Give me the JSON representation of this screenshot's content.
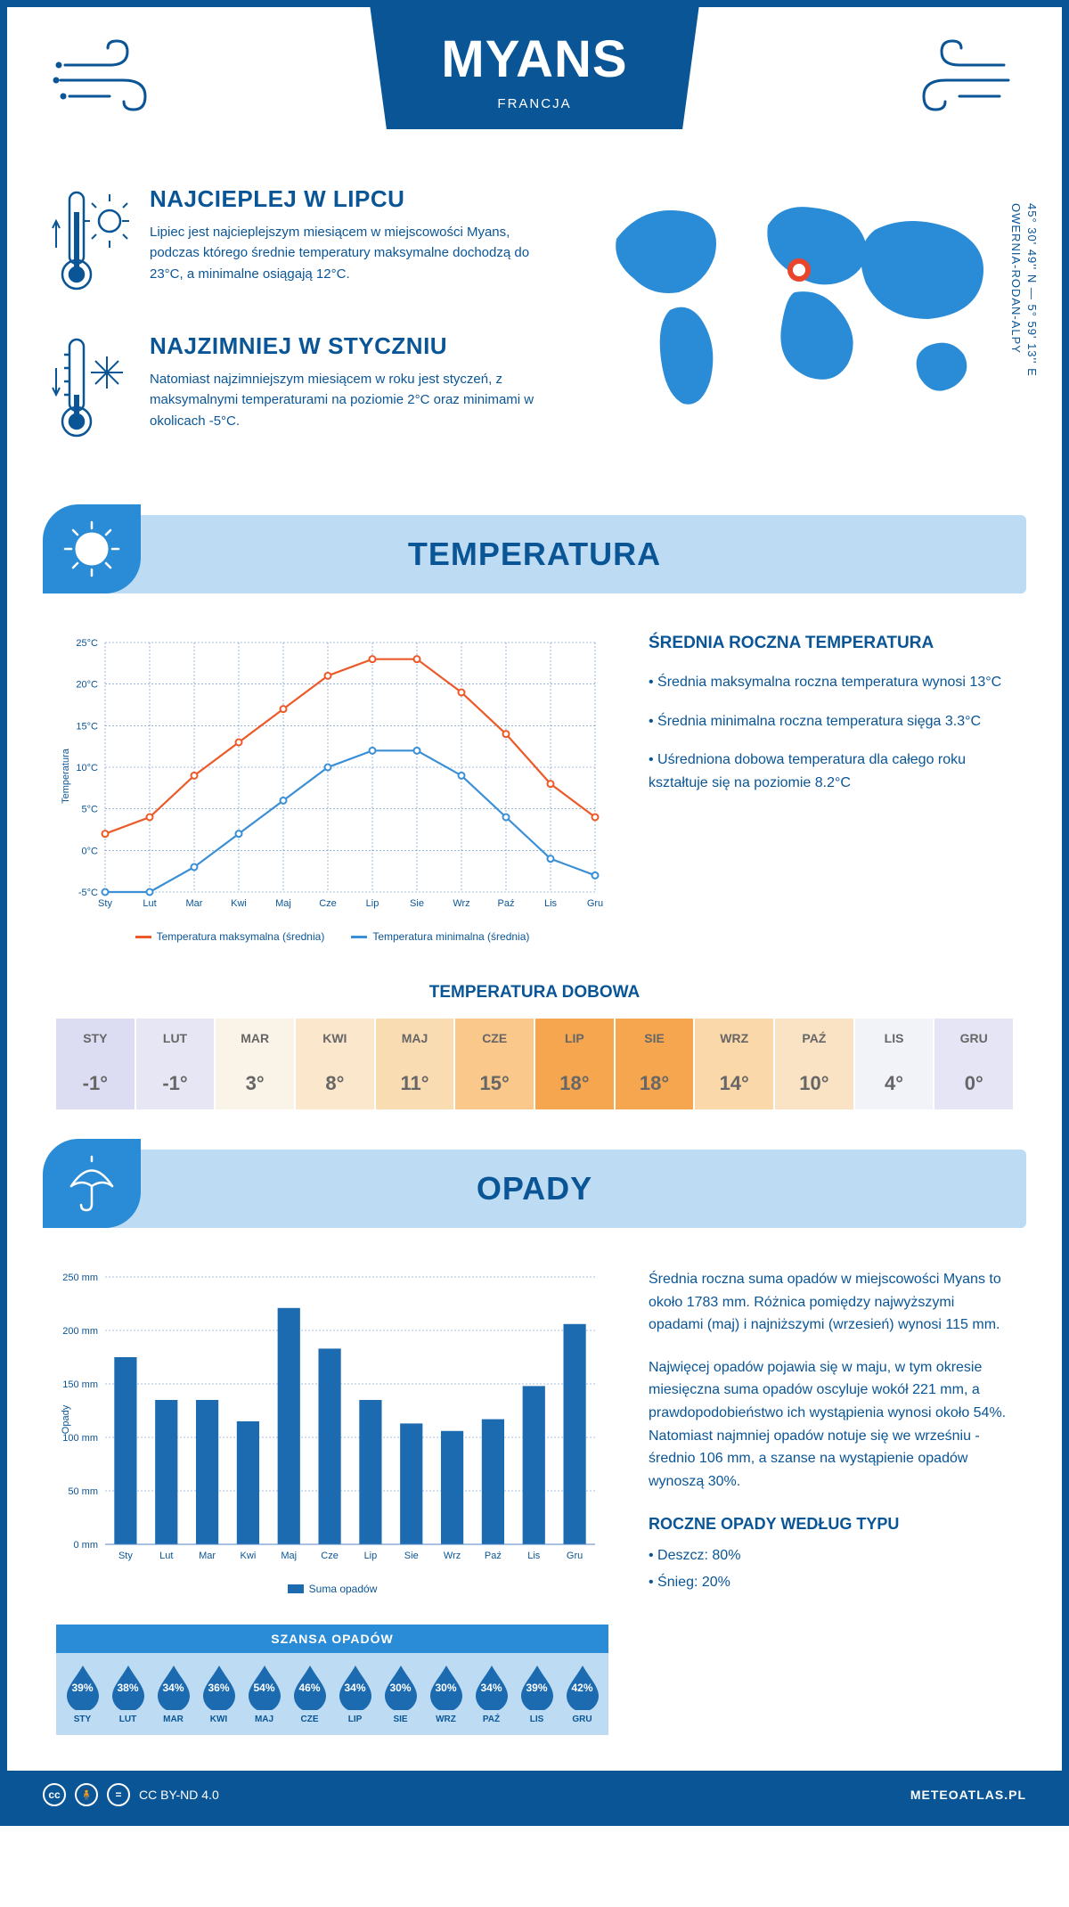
{
  "header": {
    "city": "MYANS",
    "country": "FRANCJA"
  },
  "coords": {
    "lat": "45° 30' 49'' N — 5° 59' 13'' E",
    "region": "OWERNIA-RODAN-ALPY"
  },
  "intro": {
    "warm": {
      "title": "NAJCIEPLEJ W LIPCU",
      "text": "Lipiec jest najcieplejszym miesiącem w miejscowości Myans, podczas którego średnie temperatury maksymalne dochodzą do 23°C, a minimalne osiągają 12°C."
    },
    "cold": {
      "title": "NAJZIMNIEJ W STYCZNIU",
      "text": "Natomiast najzimniejszym miesiącem w roku jest styczeń, z maksymalnymi temperaturami na poziomie 2°C oraz minimami w okolicach -5°C."
    }
  },
  "sections": {
    "temp": "TEMPERATURA",
    "precip": "OPADY"
  },
  "months": [
    "Sty",
    "Lut",
    "Mar",
    "Kwi",
    "Maj",
    "Cze",
    "Lip",
    "Sie",
    "Wrz",
    "Paź",
    "Lis",
    "Gru"
  ],
  "months_upper": [
    "STY",
    "LUT",
    "MAR",
    "KWI",
    "MAJ",
    "CZE",
    "LIP",
    "SIE",
    "WRZ",
    "PAŹ",
    "LIS",
    "GRU"
  ],
  "temp_chart": {
    "type": "line",
    "ylabel": "Temperatura",
    "ylim": [
      -5,
      25
    ],
    "ytick_step": 5,
    "max_series": {
      "values": [
        2,
        4,
        9,
        13,
        17,
        21,
        23,
        23,
        19,
        14,
        8,
        4
      ],
      "color": "#eb5a28"
    },
    "min_series": {
      "values": [
        -5,
        -5,
        -2,
        2,
        6,
        10,
        12,
        12,
        9,
        4,
        -1,
        -3
      ],
      "color": "#3a8fd6"
    },
    "grid_color": "#5386c4",
    "background": "#ffffff",
    "legend_max": "Temperatura maksymalna (średnia)",
    "legend_min": "Temperatura minimalna (średnia)"
  },
  "temp_info": {
    "title": "ŚREDNIA ROCZNA TEMPERATURA",
    "b1": "• Średnia maksymalna roczna temperatura wynosi 13°C",
    "b2": "• Średnia minimalna roczna temperatura sięga 3.3°C",
    "b3": "• Uśredniona dobowa temperatura dla całego roku kształtuje się na poziomie 8.2°C"
  },
  "daily": {
    "title": "TEMPERATURA DOBOWA",
    "values": [
      "-1°",
      "-1°",
      "3°",
      "8°",
      "11°",
      "15°",
      "18°",
      "18°",
      "14°",
      "10°",
      "4°",
      "0°"
    ],
    "colors": [
      "#dcdcf2",
      "#e6e6f4",
      "#faf3e8",
      "#fbe7cc",
      "#fadcb3",
      "#f9c88a",
      "#f6a64e",
      "#f6a64e",
      "#fad8aa",
      "#fae3c4",
      "#f2f2f9",
      "#e5e5f5"
    ]
  },
  "precip_chart": {
    "type": "bar",
    "ylabel": "Opady",
    "ylim": [
      0,
      250
    ],
    "ytick_step": 50,
    "values": [
      175,
      135,
      135,
      115,
      221,
      183,
      135,
      113,
      106,
      117,
      148,
      206
    ],
    "bar_color": "#1c6bb0",
    "grid_color": "#5386c4",
    "legend": "Suma opadów"
  },
  "precip_info": {
    "p1": "Średnia roczna suma opadów w miejscowości Myans to około 1783 mm. Różnica pomiędzy najwyższymi opadami (maj) i najniższymi (wrzesień) wynosi 115 mm.",
    "p2": "Najwięcej opadów pojawia się w maju, w tym okresie miesięczna suma opadów oscyluje wokół 221 mm, a prawdopodobieństwo ich wystąpienia wynosi około 54%. Natomiast najmniej opadów notuje się we wrześniu - średnio 106 mm, a szanse na wystąpienie opadów wynoszą 30%.",
    "types_title": "ROCZNE OPADY WEDŁUG TYPU",
    "rain": "• Deszcz: 80%",
    "snow": "• Śnieg: 20%"
  },
  "chance": {
    "title": "SZANSA OPADÓW",
    "values": [
      "39%",
      "38%",
      "34%",
      "36%",
      "54%",
      "46%",
      "34%",
      "30%",
      "30%",
      "34%",
      "39%",
      "42%"
    ],
    "drop_color": "#1c6bb0"
  },
  "footer": {
    "license": "CC BY-ND 4.0",
    "site": "METEOATLAS.PL"
  },
  "colors": {
    "primary": "#0a5596",
    "light": "#bddcf4",
    "accent": "#2a8cd6"
  }
}
